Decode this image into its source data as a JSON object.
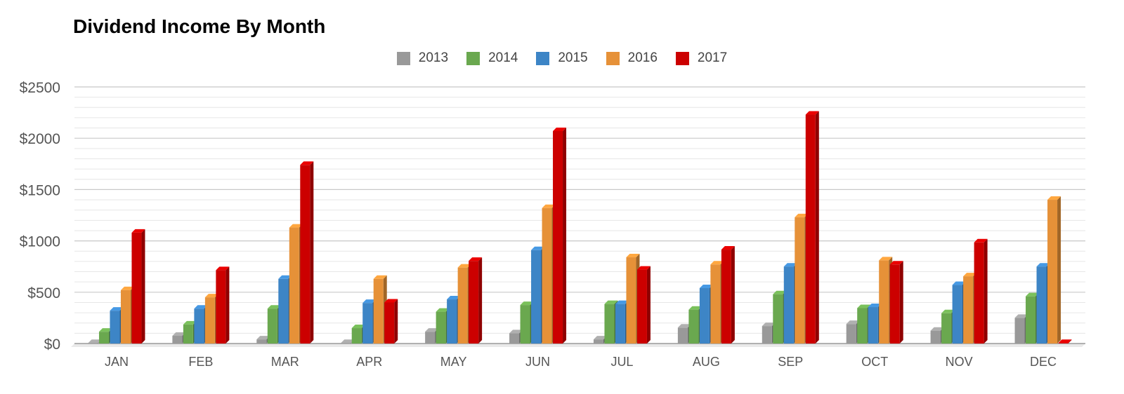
{
  "chart_data": {
    "type": "bar",
    "title": "Dividend Income By Month",
    "xlabel": "",
    "ylabel": "",
    "categories": [
      "JAN",
      "FEB",
      "MAR",
      "APR",
      "MAY",
      "JUN",
      "JUL",
      "AUG",
      "SEP",
      "OCT",
      "NOV",
      "DEC"
    ],
    "ylim": [
      0,
      2500
    ],
    "y_ticks": [
      0,
      500,
      1000,
      1500,
      2000,
      2500
    ],
    "y_tick_labels": [
      "$0",
      "$500",
      "$1000",
      "$1500",
      "$2000",
      "$2500"
    ],
    "grid": true,
    "legend_position": "top",
    "series": [
      {
        "name": "2013",
        "color": "#999999",
        "values": [
          5,
          75,
          40,
          5,
          115,
          100,
          40,
          155,
          170,
          190,
          125,
          250
        ]
      },
      {
        "name": "2014",
        "color": "#6aa84f",
        "values": [
          115,
          185,
          340,
          150,
          310,
          375,
          385,
          330,
          480,
          345,
          295,
          460
        ]
      },
      {
        "name": "2015",
        "color": "#3d85c6",
        "values": [
          320,
          340,
          630,
          395,
          430,
          910,
          385,
          540,
          750,
          355,
          570,
          750
        ]
      },
      {
        "name": "2016",
        "color": "#e69138",
        "values": [
          520,
          450,
          1130,
          630,
          740,
          1320,
          840,
          770,
          1230,
          810,
          655,
          1400
        ]
      },
      {
        "name": "2017",
        "color": "#cc0000",
        "values": [
          1080,
          715,
          1740,
          400,
          805,
          2070,
          720,
          915,
          2230,
          770,
          985,
          5
        ]
      }
    ]
  }
}
